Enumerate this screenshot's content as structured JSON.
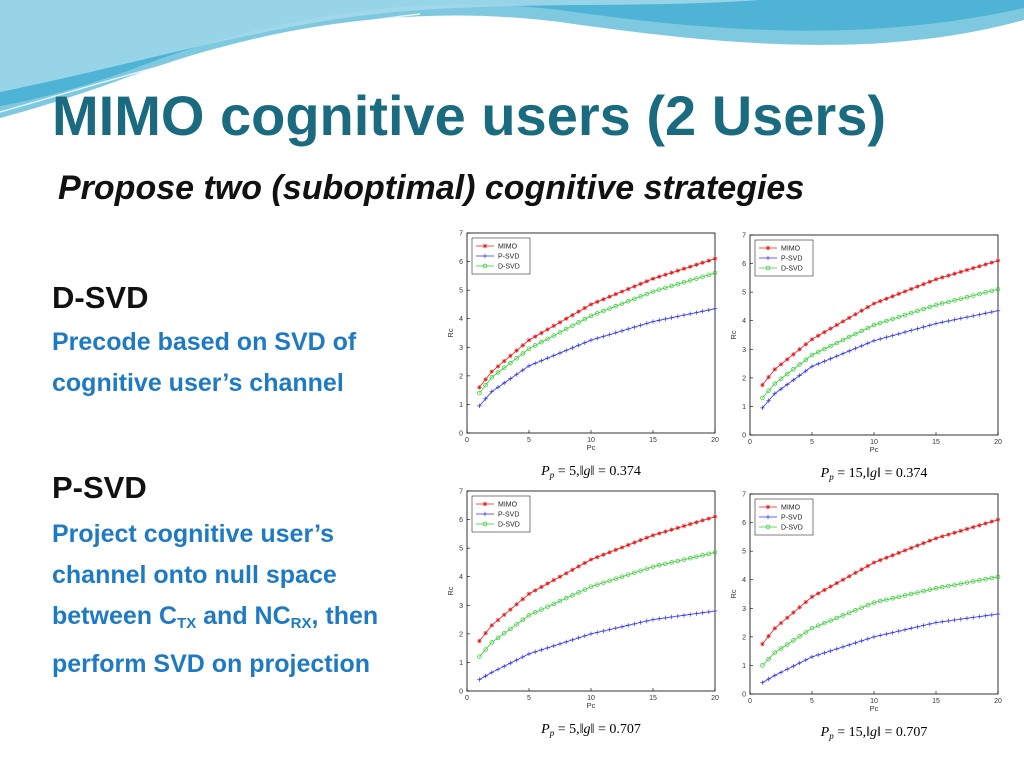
{
  "slide": {
    "title": "MIMO cognitive users (2 Users)",
    "subtitle": "Propose two (suboptimal) cognitive strategies"
  },
  "colors": {
    "title": "#1a6b80",
    "accent_text": "#1f7ac4",
    "MIMO": "#e41a1c",
    "P-SVD": "#3333ee",
    "D-SVD": "#33cc33"
  },
  "dsvd": {
    "heading": "D-SVD",
    "desc_lines": [
      "Precode based on SVD of",
      "cognitive user’s channel"
    ]
  },
  "psvd": {
    "heading": "P-SVD",
    "line1": "Project cognitive user’s",
    "line2": "channel onto null space",
    "line3_a": "between C",
    "line3_sub1": "TX",
    "line3_b": " and NC",
    "line3_sub2": "RX",
    "line3_c": ", then",
    "line4": "perform SVD on projection"
  },
  "chart_data": [
    {
      "type": "line",
      "caption": {
        "pp_value": "5",
        "g_value": "0.374"
      },
      "xlabel": "Pc",
      "ylabel": "Rc",
      "xlim": [
        0,
        20
      ],
      "ylim": [
        0,
        7
      ],
      "xticks": [
        0,
        5,
        10,
        15,
        20
      ],
      "yticks": [
        0,
        1,
        2,
        3,
        4,
        5,
        6,
        7
      ],
      "legend_position": "top-left",
      "series": [
        {
          "name": "MIMO",
          "marker": "*",
          "color": "#e41a1c",
          "points": [
            [
              1,
              1.6
            ],
            [
              2,
              2.15
            ],
            [
              5,
              3.25
            ],
            [
              10,
              4.5
            ],
            [
              15,
              5.4
            ],
            [
              20,
              6.1
            ]
          ]
        },
        {
          "name": "P-SVD",
          "marker": "+",
          "color": "#3333ee",
          "points": [
            [
              1,
              0.95
            ],
            [
              2,
              1.45
            ],
            [
              5,
              2.35
            ],
            [
              10,
              3.25
            ],
            [
              15,
              3.9
            ],
            [
              20,
              4.35
            ]
          ]
        },
        {
          "name": "D-SVD",
          "marker": "o",
          "color": "#33cc33",
          "points": [
            [
              1,
              1.4
            ],
            [
              2,
              1.95
            ],
            [
              5,
              2.95
            ],
            [
              10,
              4.1
            ],
            [
              15,
              4.95
            ],
            [
              20,
              5.6
            ]
          ]
        }
      ]
    },
    {
      "type": "line",
      "caption": {
        "pp_value": "15",
        "g_value": "0.374"
      },
      "xlabel": "Pc",
      "ylabel": "Rc",
      "xlim": [
        0,
        20
      ],
      "ylim": [
        0,
        7
      ],
      "xticks": [
        0,
        5,
        10,
        15,
        20
      ],
      "yticks": [
        0,
        1,
        2,
        3,
        4,
        5,
        6,
        7
      ],
      "legend_position": "top-left",
      "series": [
        {
          "name": "MIMO",
          "marker": "*",
          "color": "#e41a1c",
          "points": [
            [
              1,
              1.75
            ],
            [
              2,
              2.3
            ],
            [
              5,
              3.35
            ],
            [
              10,
              4.6
            ],
            [
              15,
              5.45
            ],
            [
              20,
              6.1
            ]
          ]
        },
        {
          "name": "P-SVD",
          "marker": "+",
          "color": "#3333ee",
          "points": [
            [
              1,
              0.95
            ],
            [
              2,
              1.45
            ],
            [
              5,
              2.4
            ],
            [
              10,
              3.3
            ],
            [
              15,
              3.9
            ],
            [
              20,
              4.35
            ]
          ]
        },
        {
          "name": "D-SVD",
          "marker": "o",
          "color": "#33cc33",
          "points": [
            [
              1,
              1.3
            ],
            [
              2,
              1.8
            ],
            [
              5,
              2.8
            ],
            [
              10,
              3.85
            ],
            [
              15,
              4.55
            ],
            [
              20,
              5.1
            ]
          ]
        }
      ]
    },
    {
      "type": "line",
      "caption": {
        "pp_value": "5",
        "g_value": "0.707"
      },
      "xlabel": "Pc",
      "ylabel": "Rc",
      "xlim": [
        0,
        20
      ],
      "ylim": [
        0,
        7
      ],
      "xticks": [
        0,
        5,
        10,
        15,
        20
      ],
      "yticks": [
        0,
        1,
        2,
        3,
        4,
        5,
        6,
        7
      ],
      "legend_position": "top-left",
      "series": [
        {
          "name": "MIMO",
          "marker": "*",
          "color": "#e41a1c",
          "points": [
            [
              1,
              1.75
            ],
            [
              2,
              2.3
            ],
            [
              5,
              3.4
            ],
            [
              10,
              4.6
            ],
            [
              15,
              5.45
            ],
            [
              20,
              6.1
            ]
          ]
        },
        {
          "name": "P-SVD",
          "marker": "+",
          "color": "#3333ee",
          "points": [
            [
              1,
              0.4
            ],
            [
              2,
              0.65
            ],
            [
              5,
              1.3
            ],
            [
              10,
              2.0
            ],
            [
              15,
              2.5
            ],
            [
              20,
              2.8
            ]
          ]
        },
        {
          "name": "D-SVD",
          "marker": "o",
          "color": "#33cc33",
          "points": [
            [
              1,
              1.2
            ],
            [
              2,
              1.7
            ],
            [
              5,
              2.65
            ],
            [
              10,
              3.65
            ],
            [
              15,
              4.35
            ],
            [
              20,
              4.85
            ]
          ]
        }
      ]
    },
    {
      "type": "line",
      "caption": {
        "pp_value": "15",
        "g_value": "0.707"
      },
      "xlabel": "Pc",
      "ylabel": "Rc",
      "xlim": [
        0,
        20
      ],
      "ylim": [
        0,
        7
      ],
      "xticks": [
        0,
        5,
        10,
        15,
        20
      ],
      "yticks": [
        0,
        1,
        2,
        3,
        4,
        5,
        6,
        7
      ],
      "legend_position": "top-left",
      "series": [
        {
          "name": "MIMO",
          "marker": "*",
          "color": "#e41a1c",
          "points": [
            [
              1,
              1.75
            ],
            [
              2,
              2.3
            ],
            [
              5,
              3.4
            ],
            [
              10,
              4.6
            ],
            [
              15,
              5.45
            ],
            [
              20,
              6.1
            ]
          ]
        },
        {
          "name": "P-SVD",
          "marker": "+",
          "color": "#3333ee",
          "points": [
            [
              1,
              0.4
            ],
            [
              2,
              0.65
            ],
            [
              5,
              1.3
            ],
            [
              10,
              2.0
            ],
            [
              15,
              2.5
            ],
            [
              20,
              2.8
            ]
          ]
        },
        {
          "name": "D-SVD",
          "marker": "o",
          "color": "#33cc33",
          "points": [
            [
              1,
              1.0
            ],
            [
              2,
              1.45
            ],
            [
              5,
              2.3
            ],
            [
              10,
              3.2
            ],
            [
              15,
              3.7
            ],
            [
              20,
              4.1
            ]
          ]
        }
      ]
    }
  ]
}
